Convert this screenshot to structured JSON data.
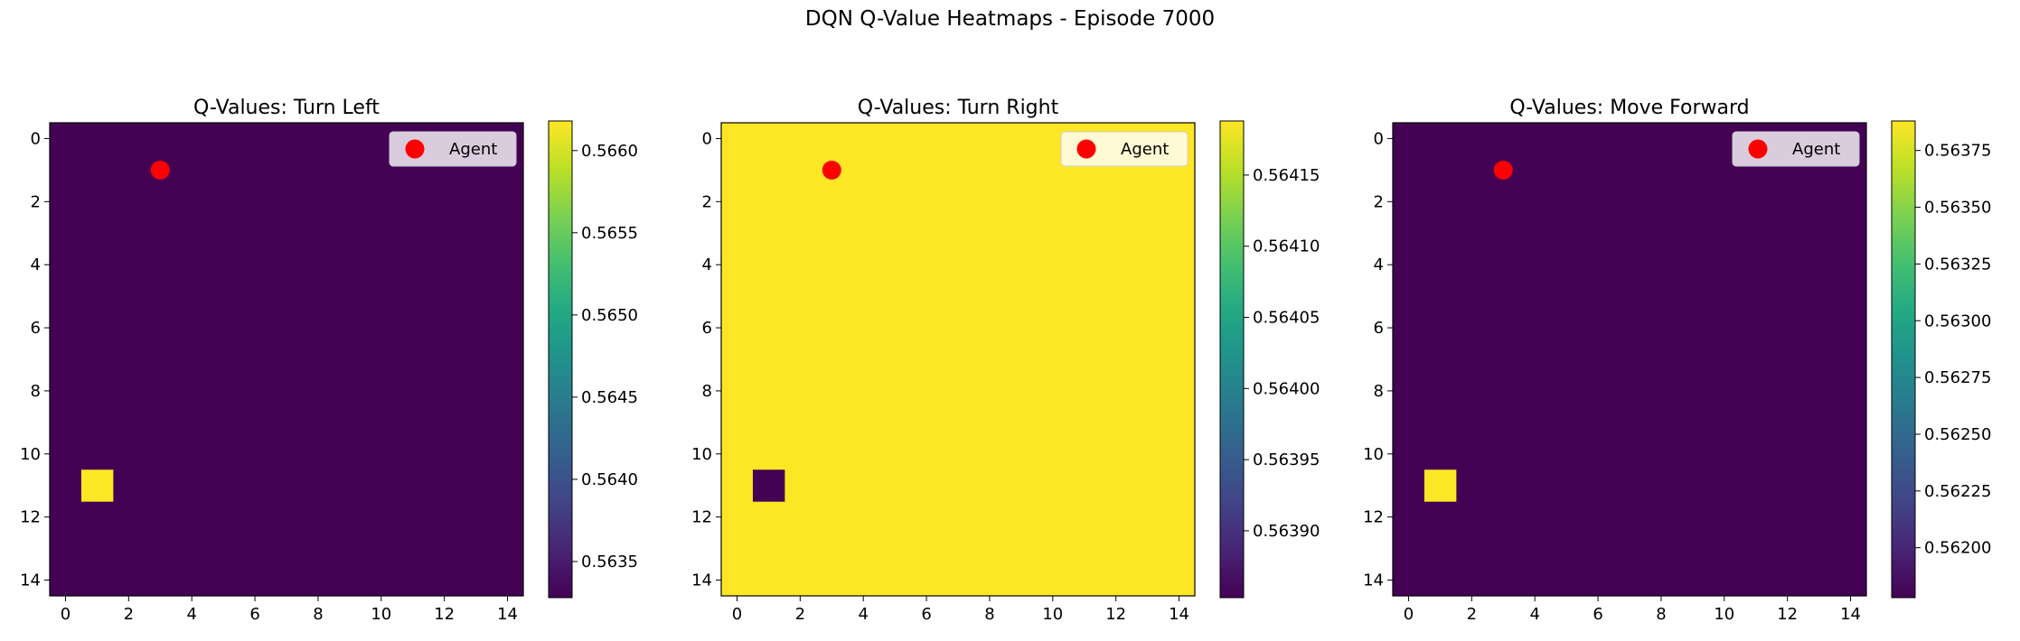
{
  "figure": {
    "suptitle": "DQN Q-Value Heatmaps - Episode 7000"
  },
  "colormap": {
    "name": "viridis",
    "low_color": "#440154",
    "high_color": "#fde725"
  },
  "agent_color": "#ff0000",
  "chart_data": [
    {
      "type": "heatmap",
      "title": "Q-Values: Turn Left",
      "grid_size": [
        15,
        15
      ],
      "x_ticks": [
        "0",
        "2",
        "4",
        "6",
        "8",
        "10",
        "12",
        "14"
      ],
      "y_ticks": [
        "0",
        "2",
        "4",
        "6",
        "8",
        "10",
        "12",
        "14"
      ],
      "base_value": 0.56328,
      "special_cells": [
        {
          "row": 11,
          "col": 1,
          "value": 0.56618
        }
      ],
      "color_range": [
        0.56328,
        0.56618
      ],
      "colorbar_ticks": [
        "0.5635",
        "0.5640",
        "0.5645",
        "0.5650",
        "0.5655",
        "0.5660"
      ],
      "agent": {
        "x": 3,
        "y": 1
      },
      "legend": {
        "label": "Agent",
        "position": "upper right"
      }
    },
    {
      "type": "heatmap",
      "title": "Q-Values: Turn Right",
      "grid_size": [
        15,
        15
      ],
      "x_ticks": [
        "0",
        "2",
        "4",
        "6",
        "8",
        "10",
        "12",
        "14"
      ],
      "y_ticks": [
        "0",
        "2",
        "4",
        "6",
        "8",
        "10",
        "12",
        "14"
      ],
      "base_value": 0.564188,
      "special_cells": [
        {
          "row": 11,
          "col": 1,
          "value": 0.563853
        }
      ],
      "color_range": [
        0.563853,
        0.564188
      ],
      "colorbar_ticks": [
        "0.56390",
        "0.56395",
        "0.56400",
        "0.56405",
        "0.56410",
        "0.56415"
      ],
      "agent": {
        "x": 3,
        "y": 1
      },
      "legend": {
        "label": "Agent",
        "position": "upper right"
      }
    },
    {
      "type": "heatmap",
      "title": "Q-Values: Move Forward",
      "grid_size": [
        15,
        15
      ],
      "x_ticks": [
        "0",
        "2",
        "4",
        "6",
        "8",
        "10",
        "12",
        "14"
      ],
      "y_ticks": [
        "0",
        "2",
        "4",
        "6",
        "8",
        "10",
        "12",
        "14"
      ],
      "base_value": 0.56178,
      "special_cells": [
        {
          "row": 11,
          "col": 1,
          "value": 0.56388
        }
      ],
      "color_range": [
        0.56178,
        0.56388
      ],
      "colorbar_ticks": [
        "0.56200",
        "0.56225",
        "0.56250",
        "0.56275",
        "0.56300",
        "0.56325",
        "0.56350",
        "0.56375"
      ],
      "agent": {
        "x": 3,
        "y": 1
      },
      "legend": {
        "label": "Agent",
        "position": "upper right"
      }
    }
  ]
}
